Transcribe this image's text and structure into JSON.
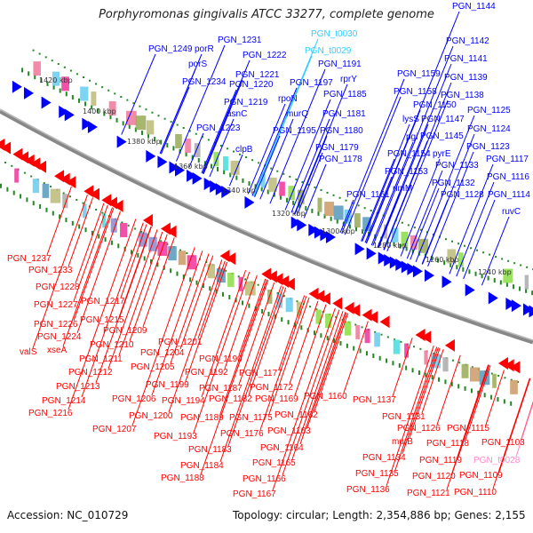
{
  "title": "Porphyromonas gingivalis ATCC 33277, complete genome",
  "footer": {
    "accession": "Accession: NC_010729",
    "summary": "Topology: circular; Length: 2,354,886 bp; Genes: 2,155"
  },
  "colors": {
    "forward": "#0000ff",
    "reverse": "#ff0000",
    "trna_fwd": "#33ccff",
    "trna_rev": "#ff88cc",
    "backbone": "#777777",
    "tick": "#228822"
  },
  "kbp_ticks": [
    "1420 kbp",
    "1400 kbp",
    "1380 kbp",
    "1360 kbp",
    "1340 kbp",
    "1320 kbp",
    "1300 kbp",
    "1280 kbp",
    "1260 kbp",
    "1240 kbp"
  ],
  "forward_genes": [
    "PGN_1144",
    "PGN_1142",
    "PGN_1141",
    "PGN_t0030",
    "PGN_t0029",
    "PGN_1231",
    "PGN_1249",
    "porR",
    "PGN_1222",
    "porS",
    "PGN_1221",
    "PGN_1191",
    "PGN_1234",
    "PGN_1197",
    "rprY",
    "PGN_1139",
    "PGN_1159",
    "PGN_1220",
    "PGN_1185",
    "PGN_1158",
    "PGN_1138",
    "rpoN",
    "PGN_1219",
    "PGN_1150",
    "PGN_1181",
    "PGN_1125",
    "murQ",
    "asnC",
    "lysS",
    "PGN_1147",
    "PGN_1223",
    "PGN_1195",
    "PGN_1180",
    "PGN_1124",
    "pgi",
    "PGN_1145",
    "PGN_1123",
    "clpB",
    "PGN_1179",
    "PGN_1154",
    "pyrE",
    "PGN_1178",
    "PGN_1117",
    "PGN_1133",
    "PGN_1153",
    "PGN_1116",
    "PGN_1132",
    "rimM",
    "PGN_1161",
    "PGN_1128",
    "PGN_1114",
    "ruvC"
  ],
  "reverse_genes": [
    "PGN_1237",
    "PGN_1233",
    "PGN_1228",
    "PGN_1227",
    "PGN_1217",
    "PGN_1226",
    "PGN_1215",
    "PGN_1209",
    "PGN_1224",
    "PGN_1210",
    "PGN_1201",
    "valS",
    "xseA",
    "PGN_1211",
    "PGN_1204",
    "PGN_1205",
    "PGN_1190",
    "PGN_1212",
    "PGN_1192",
    "PGN_1177",
    "PGN_1199",
    "PGN_1213",
    "PGN_1187",
    "PGN_1172",
    "PGN_1169",
    "PGN_1160",
    "PGN_1137",
    "PGN_1206",
    "PGN_1194",
    "PGN_1182",
    "PGN_1214",
    "PGN_1216",
    "PGN_1200",
    "PGN_1189",
    "PGN_1175",
    "PGN_1162",
    "PGN_1131",
    "PGN_1207",
    "PGN_1176",
    "PGN_1163",
    "PGN_1126",
    "PGN_1115",
    "PGN_1193",
    "murB",
    "PGN_1118",
    "PGN_1103",
    "PGN_1183",
    "PGN_1164",
    "PGN_1134",
    "PGN_1119",
    "PGN_t0028",
    "PGN_1184",
    "PGN_1165",
    "PGN_1135",
    "PGN_1120",
    "PGN_1109",
    "PGN_1188",
    "PGN_1166",
    "PGN_1136",
    "PGN_1121",
    "PGN_1110",
    "PGN_1167"
  ]
}
